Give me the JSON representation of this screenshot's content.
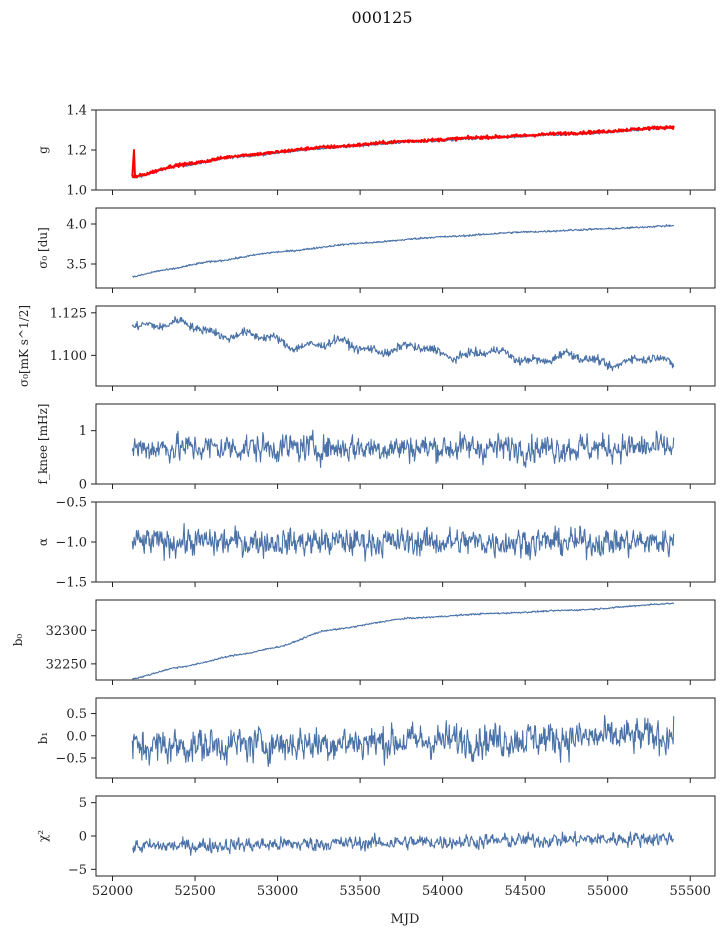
{
  "figure": {
    "title": "000125",
    "xlabel": "MJD"
  },
  "colors": {
    "series": "#4a72a8",
    "model": "#ff0000",
    "axis": "#222222"
  },
  "chart_data": {
    "type": "line",
    "x_range": [
      51900,
      55650
    ],
    "x_ticks": [
      52000,
      52500,
      53000,
      53500,
      54000,
      54500,
      55000,
      55500
    ],
    "x_tick_labels": [
      "52000",
      "52500",
      "53000",
      "53500",
      "54000",
      "54500",
      "55000",
      "55500"
    ],
    "x_start": 52120,
    "x_end": 55400,
    "panels": [
      {
        "id": "g",
        "ylabel": "g",
        "ylim": [
          1.0,
          1.4
        ],
        "y_ticks": [
          1.0,
          1.2,
          1.4
        ],
        "y_tick_labels": [
          "1.0",
          "1.2",
          "1.4"
        ],
        "series": [
          {
            "style": "smooth",
            "color": "#4a72a8",
            "knots": [
              [
                52120,
                1.06
              ],
              [
                52400,
                1.12
              ],
              [
                52800,
                1.17
              ],
              [
                53300,
                1.21
              ],
              [
                53800,
                1.24
              ],
              [
                54300,
                1.26
              ],
              [
                54800,
                1.28
              ],
              [
                55400,
                1.31
              ]
            ],
            "noise": 0.003
          },
          {
            "style": "smooth",
            "color": "#ff0000",
            "knots": [
              [
                52120,
                1.065
              ],
              [
                52400,
                1.125
              ],
              [
                52800,
                1.175
              ],
              [
                53300,
                1.215
              ],
              [
                53800,
                1.245
              ],
              [
                54300,
                1.265
              ],
              [
                54800,
                1.285
              ],
              [
                55400,
                1.315
              ]
            ],
            "noise": 0.004,
            "spike": [
              52130,
              1.2
            ],
            "lw": 2
          }
        ]
      },
      {
        "id": "sigma0-du",
        "ylabel": "σ₀ [du]",
        "ylim": [
          3.2,
          4.2
        ],
        "y_ticks": [
          3.5,
          4.0
        ],
        "y_tick_labels": [
          "3.5",
          "4.0"
        ],
        "series": [
          {
            "style": "smooth",
            "color": "#4a72a8",
            "knots": [
              [
                52120,
                3.34
              ],
              [
                52300,
                3.42
              ],
              [
                52600,
                3.53
              ],
              [
                53000,
                3.65
              ],
              [
                53500,
                3.76
              ],
              [
                54000,
                3.84
              ],
              [
                54500,
                3.9
              ],
              [
                55000,
                3.94
              ],
              [
                55400,
                3.98
              ]
            ],
            "noise": 0.006
          }
        ]
      },
      {
        "id": "sigma0-mks",
        "ylabel": "σ₀[mK s^1/2]",
        "ylim": [
          1.082,
          1.129
        ],
        "y_ticks": [
          1.1,
          1.125
        ],
        "y_tick_labels": [
          "1.100",
          "1.125"
        ],
        "series": [
          {
            "style": "wavy",
            "color": "#4a72a8",
            "knots": [
              [
                52120,
                1.12
              ],
              [
                52600,
                1.115
              ],
              [
                53000,
                1.108
              ],
              [
                53500,
                1.105
              ],
              [
                54000,
                1.102
              ],
              [
                54500,
                1.099
              ],
              [
                55000,
                1.097
              ],
              [
                55400,
                1.096
              ]
            ],
            "wave": 0.0025,
            "noise": 0.0012
          }
        ]
      },
      {
        "id": "fknee",
        "ylabel": "f_knee [mHz]",
        "ylim": [
          0,
          1.5
        ],
        "y_ticks": [
          0,
          1
        ],
        "y_tick_labels": [
          "0",
          "1"
        ],
        "series": [
          {
            "style": "noise",
            "color": "#4a72a8",
            "mean": 0.68,
            "amp": 0.12
          }
        ]
      },
      {
        "id": "alpha",
        "ylabel": "α",
        "ylim": [
          -1.5,
          -0.5
        ],
        "y_ticks": [
          -1.5,
          -1.0,
          -0.5
        ],
        "y_tick_labels": [
          "−1.5",
          "−1.0",
          "−0.5"
        ],
        "series": [
          {
            "style": "noise",
            "color": "#4a72a8",
            "mean": -1.0,
            "amp": 0.08
          }
        ]
      },
      {
        "id": "b0",
        "ylabel": "b₀",
        "ylim": [
          32226,
          32345
        ],
        "y_ticks": [
          32250,
          32300
        ],
        "y_tick_labels": [
          "32250",
          "32300"
        ],
        "series": [
          {
            "style": "smooth",
            "color": "#4a72a8",
            "knots": [
              [
                52120,
                32228
              ],
              [
                52400,
                32245
              ],
              [
                52800,
                32265
              ],
              [
                53000,
                32275
              ],
              [
                53300,
                32300
              ],
              [
                53800,
                32318
              ],
              [
                54300,
                32325
              ],
              [
                54800,
                32330
              ],
              [
                55400,
                32340
              ]
            ],
            "noise": 0.6
          }
        ]
      },
      {
        "id": "b1",
        "ylabel": "b₁",
        "ylim": [
          -0.95,
          0.85
        ],
        "y_ticks": [
          -0.5,
          0.0,
          0.5
        ],
        "y_tick_labels": [
          "−0.5",
          "0.0",
          "0.5"
        ],
        "series": [
          {
            "style": "noise",
            "color": "#4a72a8",
            "mean_start": -0.25,
            "mean_end": 0.0,
            "amp": 0.18
          }
        ]
      },
      {
        "id": "chi2",
        "ylabel": "χ²",
        "ylim": [
          -6,
          6
        ],
        "y_ticks": [
          -5,
          0,
          5
        ],
        "y_tick_labels": [
          "−5",
          "0",
          "5"
        ],
        "series": [
          {
            "style": "noise",
            "color": "#4a72a8",
            "mean_start": -1.6,
            "mean_end": -0.3,
            "amp": 0.5
          }
        ]
      }
    ]
  }
}
